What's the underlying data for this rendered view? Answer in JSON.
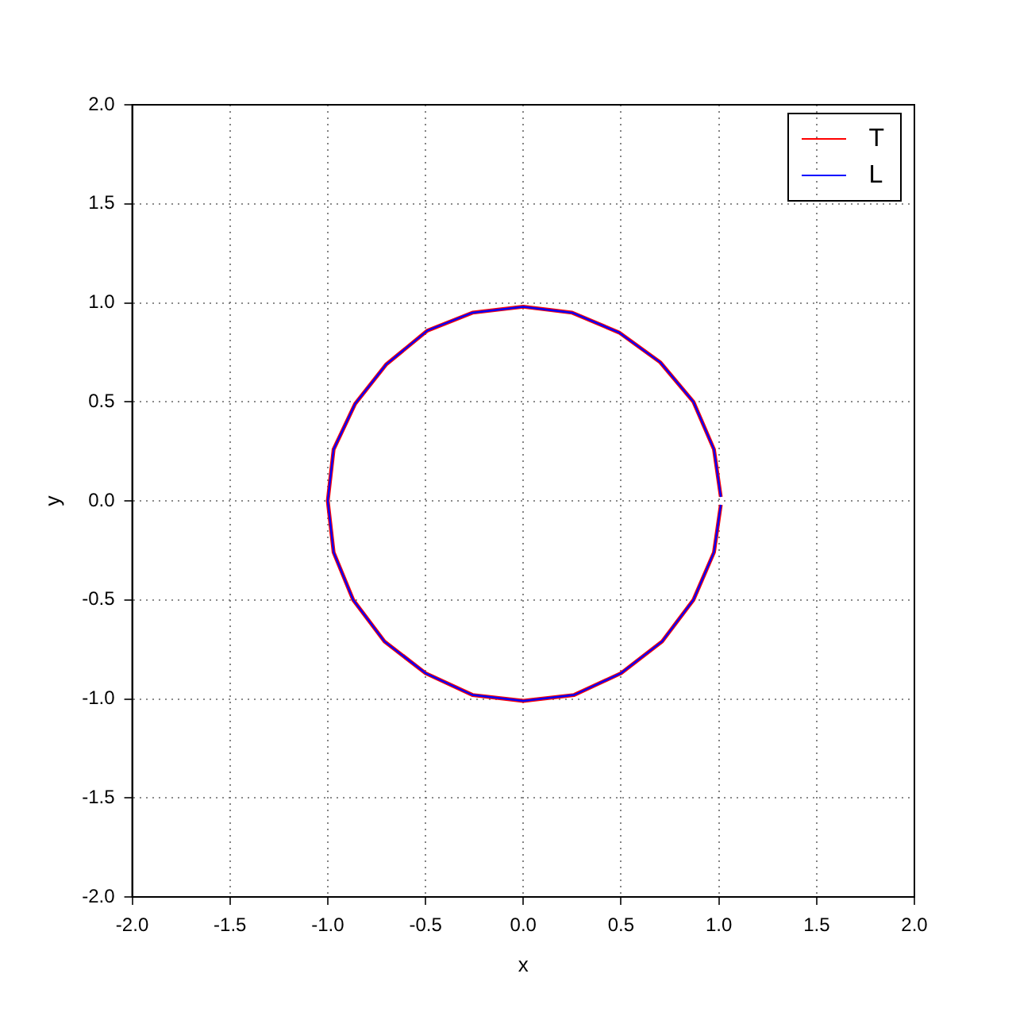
{
  "chart_data": {
    "type": "line",
    "xlabel": "x",
    "ylabel": "y",
    "xlim": [
      -2,
      2
    ],
    "ylim": [
      -2,
      2
    ],
    "xticks": [
      {
        "value": -2,
        "label": "-2.0"
      },
      {
        "value": -1.5,
        "label": "-1.5"
      },
      {
        "value": -1,
        "label": "-1.0"
      },
      {
        "value": -0.5,
        "label": "-0.5"
      },
      {
        "value": 0,
        "label": "0.0"
      },
      {
        "value": 0.5,
        "label": "0.5"
      },
      {
        "value": 1,
        "label": "1.0"
      },
      {
        "value": 1.5,
        "label": "1.5"
      },
      {
        "value": 2,
        "label": "2.0"
      }
    ],
    "yticks": [
      {
        "value": -2,
        "label": "-2.0"
      },
      {
        "value": -1.5,
        "label": "-1.5"
      },
      {
        "value": -1,
        "label": "-1.0"
      },
      {
        "value": -0.5,
        "label": "-0.5"
      },
      {
        "value": 0,
        "label": "0.0"
      },
      {
        "value": 0.5,
        "label": "0.5"
      },
      {
        "value": 1,
        "label": "1.0"
      },
      {
        "value": 1.5,
        "label": "1.5"
      },
      {
        "value": 2,
        "label": "2.0"
      }
    ],
    "grid": true,
    "legend": "top right",
    "series": [
      {
        "name": "T",
        "color": "#ff0000",
        "x": [
          1.01,
          0.975,
          0.87,
          0.7,
          0.49,
          0.25,
          0.0,
          -0.26,
          -0.49,
          -0.7,
          -0.86,
          -0.97,
          -1.0,
          -0.97,
          -0.87,
          -0.71,
          -0.5,
          -0.26,
          0.0,
          0.26,
          0.5,
          0.71,
          0.87,
          0.975,
          1.01
        ],
        "values": [
          0.02,
          0.26,
          0.5,
          0.7,
          0.85,
          0.95,
          0.98,
          0.95,
          0.86,
          0.69,
          0.49,
          0.26,
          0,
          -0.26,
          -0.5,
          -0.71,
          -0.87,
          -0.98,
          -1.01,
          -0.98,
          -0.87,
          -0.71,
          -0.5,
          -0.26,
          -0.02
        ]
      },
      {
        "name": "L",
        "color": "#0000ff",
        "x": [
          1.01,
          0.975,
          0.87,
          0.7,
          0.49,
          0.25,
          0.0,
          -0.26,
          -0.49,
          -0.7,
          -0.86,
          -0.97,
          -1.0,
          -0.97,
          -0.87,
          -0.71,
          -0.5,
          -0.26,
          0.0,
          0.26,
          0.5,
          0.71,
          0.87,
          0.975,
          1.01
        ],
        "values": [
          0.02,
          0.26,
          0.5,
          0.7,
          0.85,
          0.95,
          0.98,
          0.95,
          0.86,
          0.69,
          0.49,
          0.26,
          0,
          -0.26,
          -0.5,
          -0.71,
          -0.87,
          -0.98,
          -1.01,
          -0.98,
          -0.87,
          -0.71,
          -0.5,
          -0.26,
          -0.02
        ]
      }
    ]
  }
}
